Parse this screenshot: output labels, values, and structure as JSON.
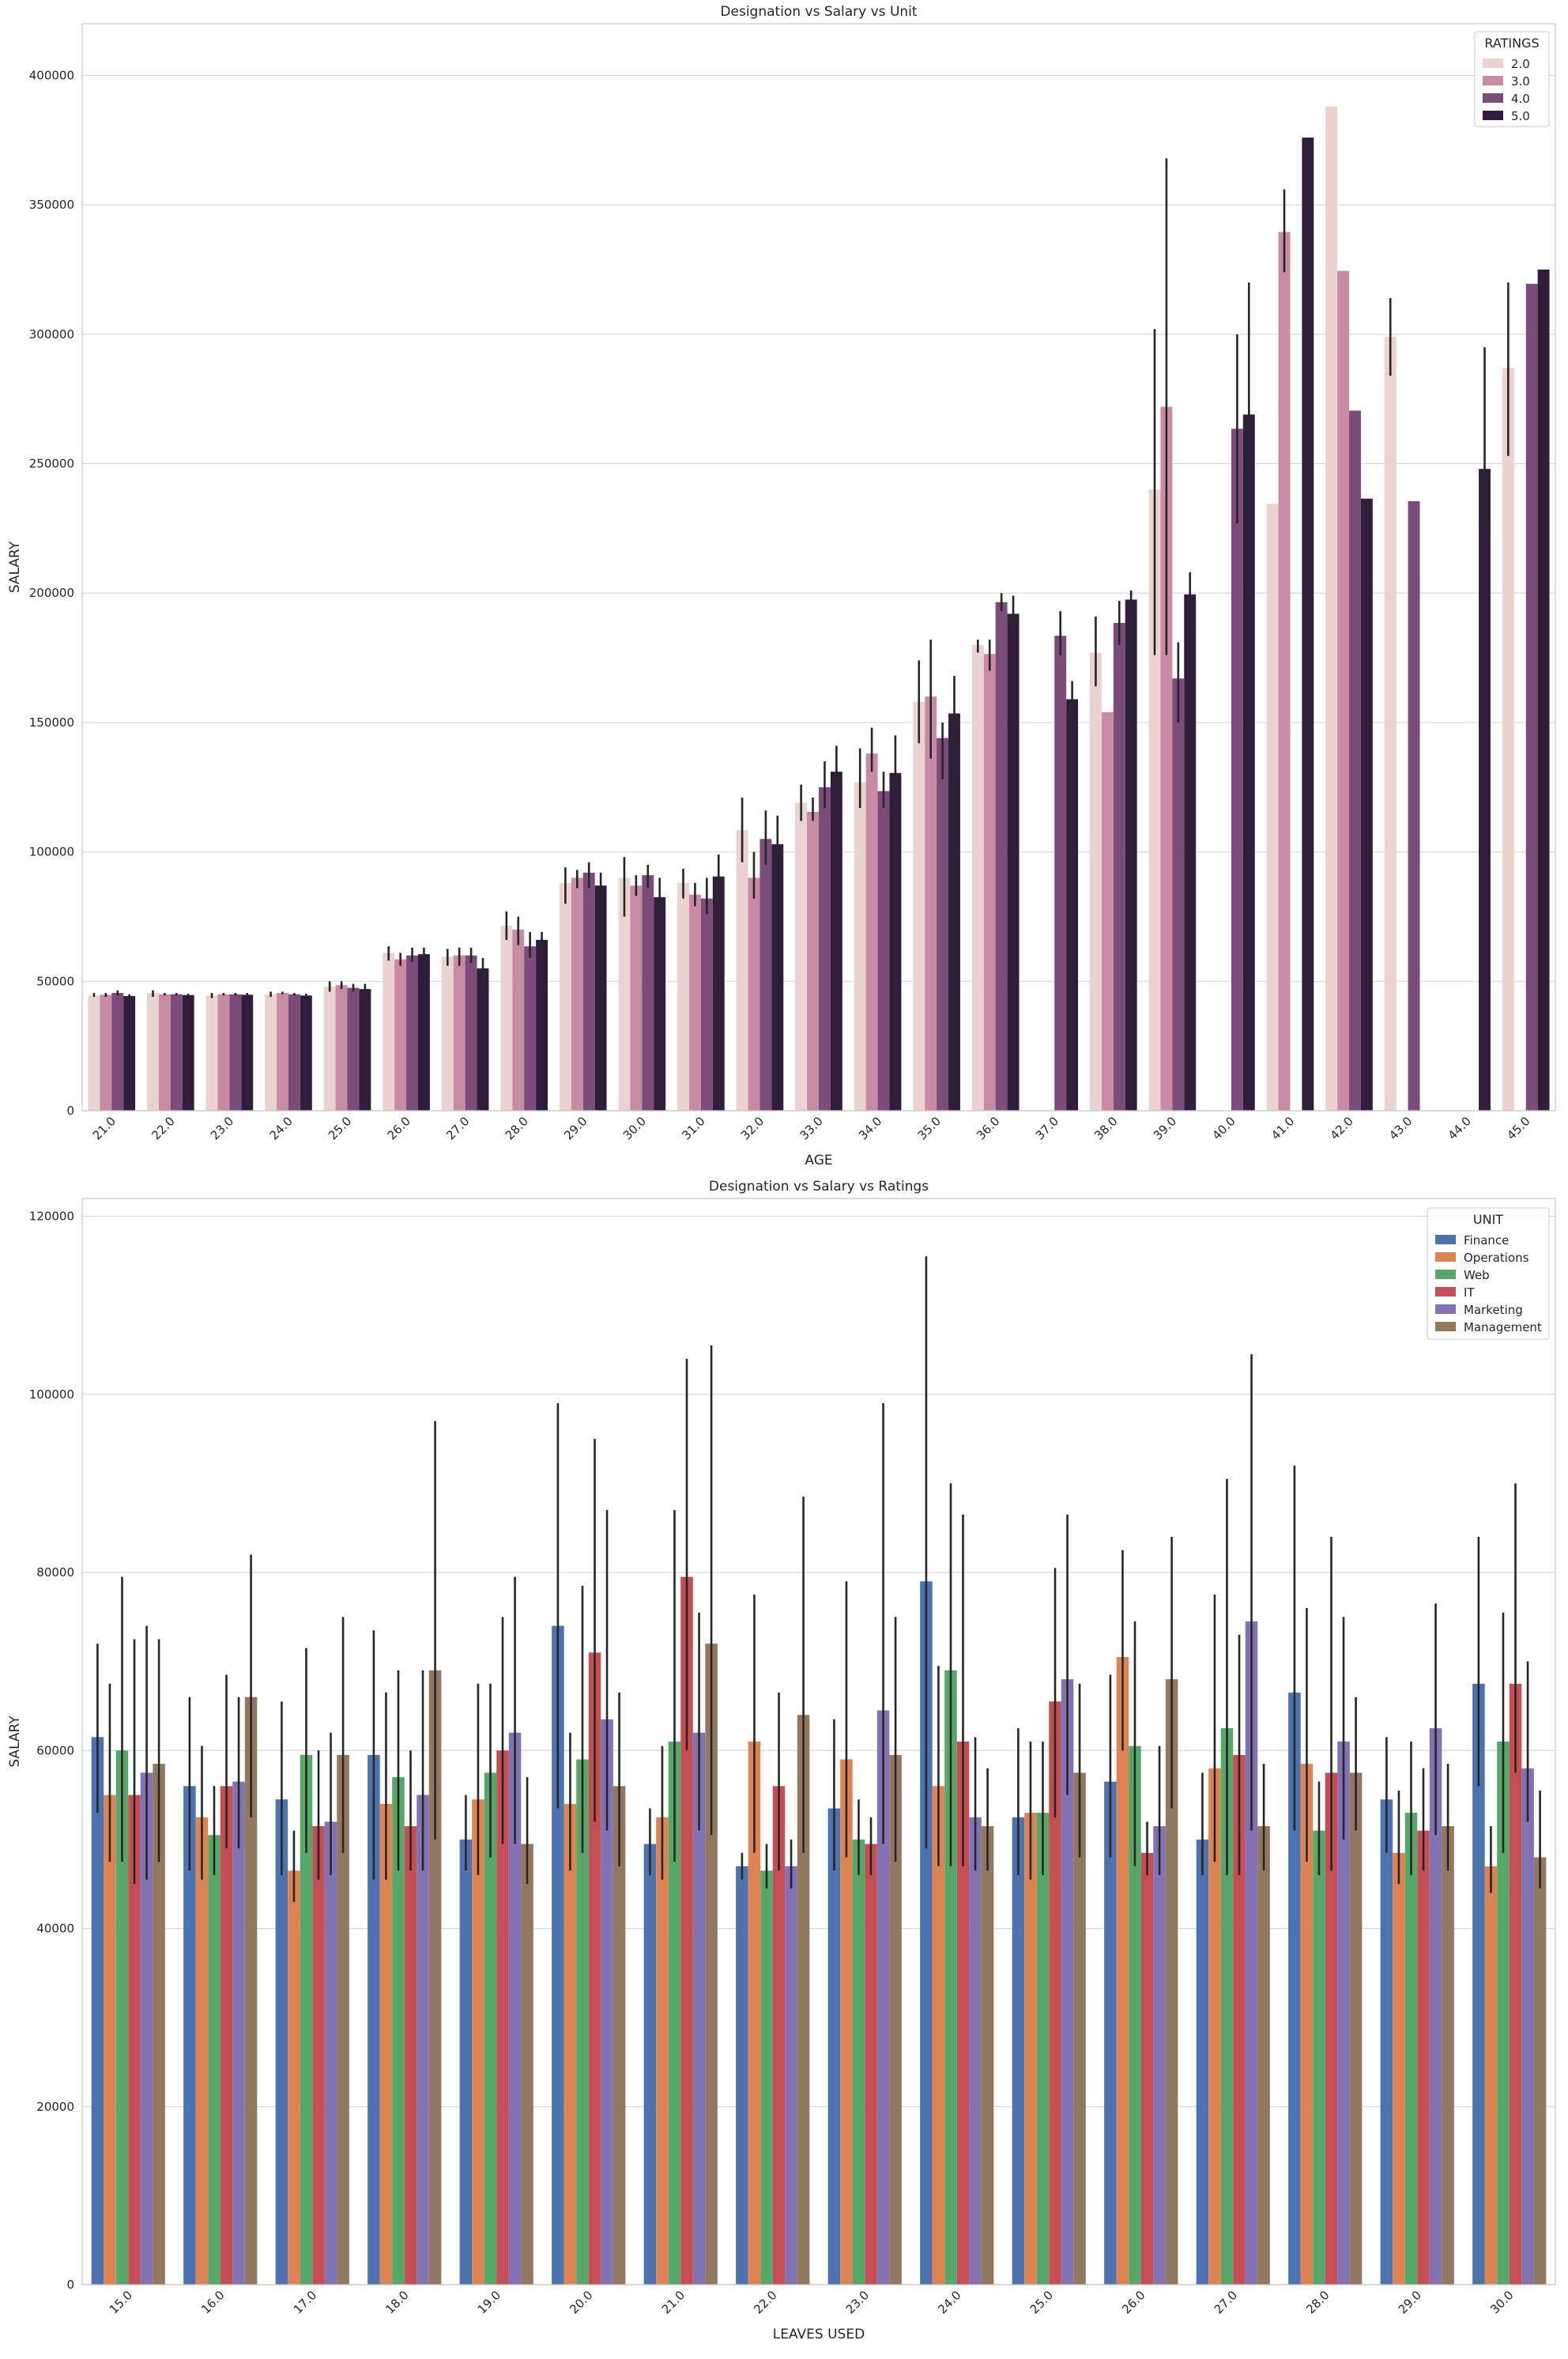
{
  "chart_data": [
    {
      "type": "bar",
      "title": "Designation vs Salary vs Unit",
      "xlabel": "AGE",
      "ylabel": "SALARY",
      "ylim": [
        0,
        420000
      ],
      "yticks": [
        0,
        50000,
        100000,
        150000,
        200000,
        250000,
        300000,
        350000,
        400000
      ],
      "grid": "horizontal",
      "legend": {
        "title": "RATINGS",
        "placement": "top-right"
      },
      "categories": [
        "21.0",
        "22.0",
        "23.0",
        "24.0",
        "25.0",
        "26.0",
        "27.0",
        "28.0",
        "29.0",
        "30.0",
        "31.0",
        "32.0",
        "33.0",
        "34.0",
        "35.0",
        "36.0",
        "37.0",
        "38.0",
        "39.0",
        "40.0",
        "41.0",
        "42.0",
        "43.0",
        "44.0",
        "45.0"
      ],
      "series": [
        {
          "name": "2.0",
          "color": "#ead3d1",
          "values": [
            44500,
            45500,
            44500,
            45000,
            48000,
            61000,
            59500,
            71500,
            88000,
            90000,
            88000,
            108500,
            119000,
            127000,
            158000,
            180000,
            null,
            177000,
            240000,
            null,
            234500,
            388000,
            299000,
            null,
            287000
          ],
          "errors": [
            [
              44000,
              45500
            ],
            [
              44000,
              46500
            ],
            [
              43500,
              45500
            ],
            [
              44000,
              46000
            ],
            [
              46000,
              50000
            ],
            [
              58000,
              63500
            ],
            [
              56000,
              62500
            ],
            [
              66000,
              77000
            ],
            [
              80000,
              94000
            ],
            [
              75000,
              98000
            ],
            [
              82000,
              93500
            ],
            [
              96000,
              121000
            ],
            [
              112000,
              126000
            ],
            [
              117000,
              140000
            ],
            [
              142000,
              174000
            ],
            [
              177000,
              182000
            ],
            null,
            [
              164000,
              191000
            ],
            [
              176000,
              302000
            ],
            null,
            null,
            null,
            [
              284000,
              314000
            ],
            null,
            [
              253000,
              320000
            ]
          ]
        },
        {
          "name": "3.0",
          "color": "#c98ba4",
          "values": [
            44800,
            45000,
            45000,
            45500,
            48500,
            58500,
            60000,
            70000,
            90000,
            87000,
            83500,
            90000,
            115500,
            138000,
            160000,
            176500,
            null,
            154000,
            272000,
            null,
            339500,
            324500,
            null,
            null,
            null
          ],
          "errors": [
            [
              44000,
              45500
            ],
            [
              44500,
              45500
            ],
            [
              44500,
              45500
            ],
            [
              45000,
              46000
            ],
            [
              47000,
              50000
            ],
            [
              56000,
              61000
            ],
            [
              56000,
              63000
            ],
            [
              64000,
              75000
            ],
            [
              86000,
              93000
            ],
            [
              83000,
              91000
            ],
            [
              79000,
              88000
            ],
            [
              82000,
              100000
            ],
            [
              112000,
              121000
            ],
            [
              131000,
              148000
            ],
            [
              136000,
              182000
            ],
            [
              170000,
              182000
            ],
            null,
            null,
            [
              176000,
              368000
            ],
            null,
            [
              324000,
              356000
            ],
            null,
            null,
            null,
            null
          ]
        },
        {
          "name": "4.0",
          "color": "#7b4b7a",
          "values": [
            45500,
            45000,
            45000,
            45000,
            47500,
            60000,
            60000,
            63500,
            92000,
            91000,
            82000,
            105000,
            125000,
            123500,
            144000,
            196500,
            183500,
            188500,
            167000,
            263500,
            null,
            270500,
            235500,
            null,
            319500
          ],
          "errors": [
            [
              44500,
              46500
            ],
            [
              44500,
              45500
            ],
            [
              44500,
              45500
            ],
            [
              44500,
              45500
            ],
            [
              46000,
              49000
            ],
            [
              57500,
              63000
            ],
            [
              57000,
              63000
            ],
            [
              59000,
              69000
            ],
            [
              86000,
              96000
            ],
            [
              86000,
              95000
            ],
            [
              76000,
              90000
            ],
            [
              95000,
              116000
            ],
            [
              117000,
              135000
            ],
            [
              117000,
              131000
            ],
            [
              128000,
              150000
            ],
            [
              193000,
              200000
            ],
            [
              176000,
              193000
            ],
            [
              180000,
              197000
            ],
            [
              150000,
              181000
            ],
            [
              227000,
              300000
            ],
            null,
            null,
            null,
            null,
            null
          ]
        },
        {
          "name": "5.0",
          "color": "#2e1e3c",
          "values": [
            44300,
            44700,
            44800,
            44500,
            47000,
            60500,
            55000,
            66000,
            87000,
            82500,
            90500,
            103000,
            131000,
            130500,
            153500,
            192000,
            159000,
            197500,
            199500,
            269000,
            376000,
            236500,
            null,
            248000,
            325000
          ],
          "errors": [
            [
              43500,
              45000
            ],
            [
              44000,
              45200
            ],
            [
              44000,
              45500
            ],
            [
              43800,
              45200
            ],
            [
              45000,
              49000
            ],
            [
              57000,
              63000
            ],
            [
              51000,
              59000
            ],
            [
              62000,
              69000
            ],
            [
              80000,
              92000
            ],
            [
              77000,
              90000
            ],
            [
              82000,
              99000
            ],
            [
              93000,
              114000
            ],
            [
              122000,
              141000
            ],
            [
              120000,
              145000
            ],
            [
              139000,
              168000
            ],
            [
              187000,
              199000
            ],
            [
              153000,
              166000
            ],
            [
              194000,
              201000
            ],
            [
              186000,
              208000
            ],
            [
              229000,
              320000
            ],
            null,
            null,
            null,
            [
              225000,
              295000
            ],
            null
          ]
        }
      ]
    },
    {
      "type": "bar",
      "title": "Designation vs Salary vs Ratings",
      "xlabel": "LEAVES USED",
      "ylabel": "SALARY",
      "ylim": [
        0,
        122000
      ],
      "yticks": [
        0,
        20000,
        40000,
        60000,
        80000,
        100000,
        120000
      ],
      "grid": "horizontal",
      "legend": {
        "title": "UNIT",
        "placement": "top-right"
      },
      "categories": [
        "15.0",
        "16.0",
        "17.0",
        "18.0",
        "19.0",
        "20.0",
        "21.0",
        "22.0",
        "23.0",
        "24.0",
        "25.0",
        "26.0",
        "27.0",
        "28.0",
        "29.0",
        "30.0"
      ],
      "series": [
        {
          "name": "Finance",
          "color": "#4c72b0",
          "values": [
            61500,
            56000,
            54500,
            59500,
            50000,
            74000,
            49500,
            47000,
            53500,
            79000,
            52500,
            56500,
            50000,
            66500,
            54500,
            67500
          ],
          "errors": [
            [
              53000,
              72000
            ],
            [
              46500,
              66000
            ],
            [
              46000,
              65500
            ],
            [
              45500,
              73500
            ],
            [
              46500,
              55000
            ],
            [
              53500,
              99000
            ],
            [
              46000,
              53500
            ],
            [
              45500,
              48500
            ],
            [
              46500,
              63500
            ],
            [
              49000,
              115500
            ],
            [
              46000,
              62500
            ],
            [
              48000,
              68500
            ],
            [
              46000,
              57500
            ],
            [
              51000,
              92000
            ],
            [
              48500,
              61500
            ],
            [
              56000,
              84000
            ]
          ]
        },
        {
          "name": "Operations",
          "color": "#dd8452",
          "values": [
            55000,
            52500,
            46500,
            54000,
            54500,
            54000,
            52500,
            61000,
            59000,
            56000,
            53000,
            70500,
            58000,
            58500,
            48500,
            47000
          ],
          "errors": [
            [
              47500,
              67500
            ],
            [
              45500,
              60500
            ],
            [
              43000,
              51000
            ],
            [
              45500,
              66500
            ],
            [
              46000,
              67500
            ],
            [
              46500,
              62000
            ],
            [
              45500,
              60500
            ],
            [
              48500,
              77500
            ],
            [
              48000,
              79000
            ],
            [
              47000,
              69500
            ],
            [
              45500,
              61000
            ],
            [
              60000,
              82500
            ],
            [
              47500,
              77500
            ],
            [
              47500,
              76000
            ],
            [
              45000,
              55500
            ],
            [
              44000,
              51500
            ]
          ]
        },
        {
          "name": "Web",
          "color": "#55a868",
          "values": [
            60000,
            50500,
            59500,
            57000,
            57500,
            59000,
            61000,
            46500,
            50000,
            69000,
            53000,
            60500,
            62500,
            51000,
            53000,
            61000
          ],
          "errors": [
            [
              47500,
              79500
            ],
            [
              46000,
              56000
            ],
            [
              48500,
              71500
            ],
            [
              46500,
              69000
            ],
            [
              48000,
              67500
            ],
            [
              48500,
              78500
            ],
            [
              47500,
              87000
            ],
            [
              44500,
              49500
            ],
            [
              46000,
              54500
            ],
            [
              47000,
              90000
            ],
            [
              46000,
              61000
            ],
            [
              47000,
              74500
            ],
            [
              46000,
              90500
            ],
            [
              46000,
              56500
            ],
            [
              46000,
              61000
            ],
            [
              48500,
              75500
            ]
          ]
        },
        {
          "name": "IT",
          "color": "#c44e52",
          "values": [
            55000,
            56000,
            51500,
            51500,
            60000,
            71000,
            79500,
            56000,
            49500,
            61000,
            65500,
            48500,
            59500,
            57500,
            51000,
            67500
          ],
          "errors": [
            [
              45000,
              72500
            ],
            [
              49000,
              68500
            ],
            [
              45500,
              60000
            ],
            [
              46500,
              60000
            ],
            [
              49500,
              75000
            ],
            [
              52000,
              95000
            ],
            [
              60000,
              104000
            ],
            [
              46500,
              66500
            ],
            [
              46000,
              52500
            ],
            [
              47000,
              86500
            ],
            [
              52500,
              80500
            ],
            [
              46000,
              52000
            ],
            [
              46000,
              73000
            ],
            [
              46500,
              84000
            ],
            [
              46500,
              58000
            ],
            [
              57500,
              90000
            ]
          ]
        },
        {
          "name": "Marketing",
          "color": "#8172b3",
          "values": [
            57500,
            56500,
            52000,
            55000,
            62000,
            63500,
            62000,
            47000,
            64500,
            52500,
            68000,
            51500,
            74500,
            61000,
            62500,
            58000
          ],
          "errors": [
            [
              45500,
              74000
            ],
            [
              49000,
              66000
            ],
            [
              46000,
              62000
            ],
            [
              46500,
              69000
            ],
            [
              49500,
              79500
            ],
            [
              51000,
              87000
            ],
            [
              51000,
              75500
            ],
            [
              44500,
              50000
            ],
            [
              49500,
              99000
            ],
            [
              46500,
              61500
            ],
            [
              55000,
              86500
            ],
            [
              46000,
              60500
            ],
            [
              51000,
              104500
            ],
            [
              50000,
              75000
            ],
            [
              50500,
              76500
            ],
            [
              52000,
              70000
            ]
          ]
        },
        {
          "name": "Management",
          "color": "#937860",
          "values": [
            58500,
            66000,
            59500,
            69000,
            49500,
            56000,
            72000,
            64000,
            59500,
            51500,
            57500,
            68000,
            51500,
            57500,
            51500,
            48000
          ],
          "errors": [
            [
              47500,
              72500
            ],
            [
              52500,
              82000
            ],
            [
              48500,
              75000
            ],
            [
              50000,
              97000
            ],
            [
              45000,
              57000
            ],
            [
              47000,
              66500
            ],
            [
              50500,
              105500
            ],
            [
              48500,
              88500
            ],
            [
              47500,
              75000
            ],
            [
              46500,
              58000
            ],
            [
              48000,
              67500
            ],
            [
              53500,
              84000
            ],
            [
              46500,
              58500
            ],
            [
              51000,
              66000
            ],
            [
              46500,
              58500
            ],
            [
              44500,
              55500
            ]
          ]
        }
      ]
    }
  ]
}
